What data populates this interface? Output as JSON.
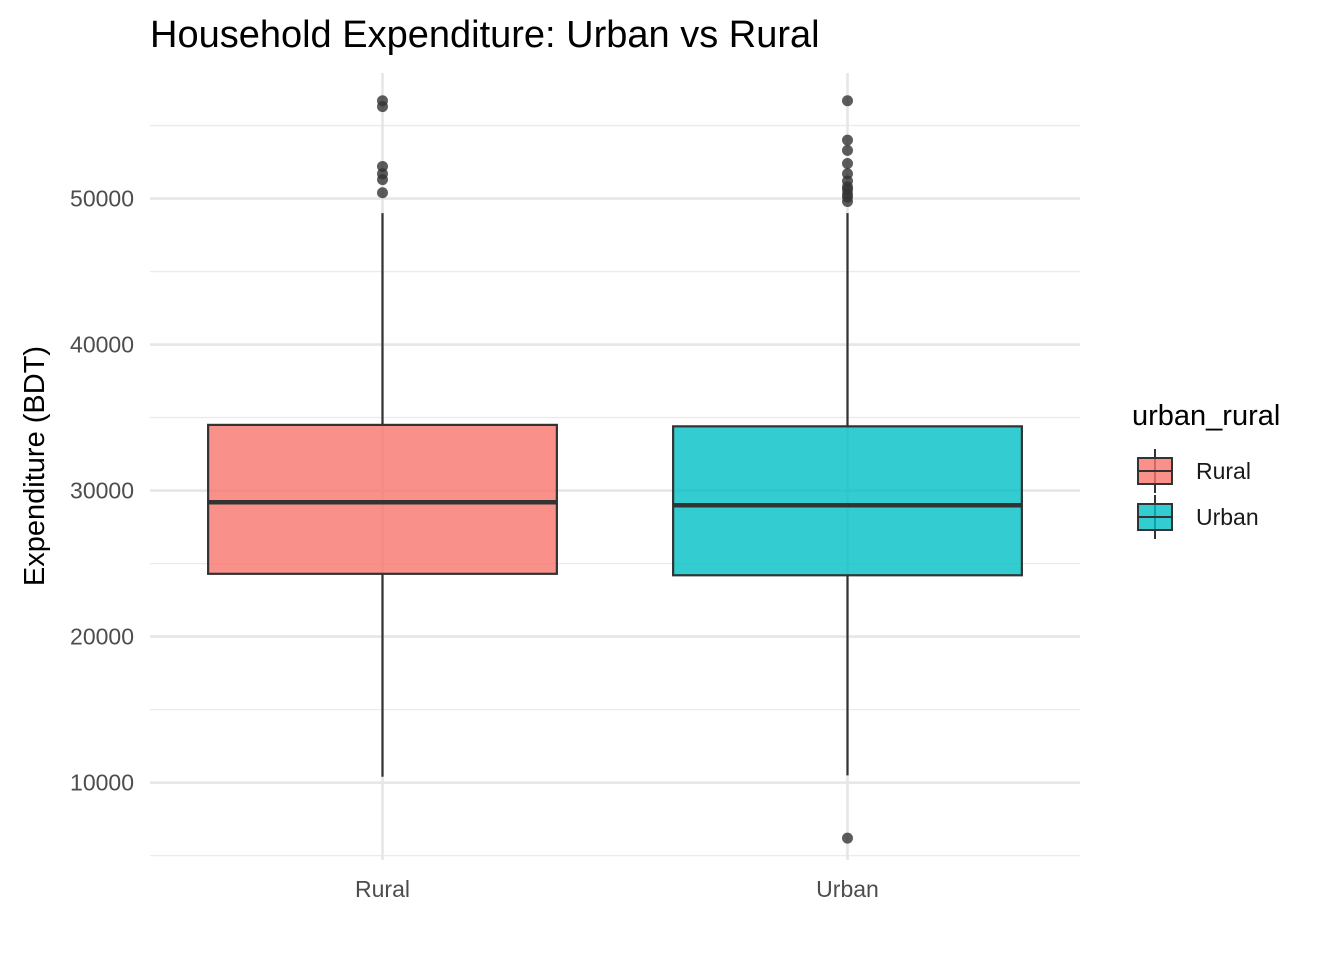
{
  "chart_data": {
    "type": "boxplot",
    "title": "Household Expenditure: Urban vs Rural",
    "xlabel": "",
    "ylabel": "Expenditure (BDT)",
    "ylim": [
      4700,
      58600
    ],
    "yticks": [
      10000,
      20000,
      30000,
      40000,
      50000
    ],
    "grid": true,
    "legend": {
      "title": "urban_rural",
      "placement": "right",
      "entries": [
        "Rural",
        "Urban"
      ]
    },
    "categories": [
      "Rural",
      "Urban"
    ],
    "series": [
      {
        "name": "Rural",
        "color": "#F8766D",
        "whisker_low": 10400,
        "q1": 24300,
        "median": 29200,
        "q3": 34500,
        "whisker_high": 49000,
        "outliers": [
          50400,
          51300,
          51700,
          52200,
          56300,
          56700
        ]
      },
      {
        "name": "Urban",
        "color": "#00BFC4",
        "whisker_low": 10500,
        "q1": 24200,
        "median": 29000,
        "q3": 34400,
        "whisker_high": 49000,
        "outliers": [
          6200,
          49800,
          50100,
          50300,
          50600,
          50800,
          51200,
          51700,
          52400,
          53300,
          54000,
          56700
        ]
      }
    ]
  }
}
